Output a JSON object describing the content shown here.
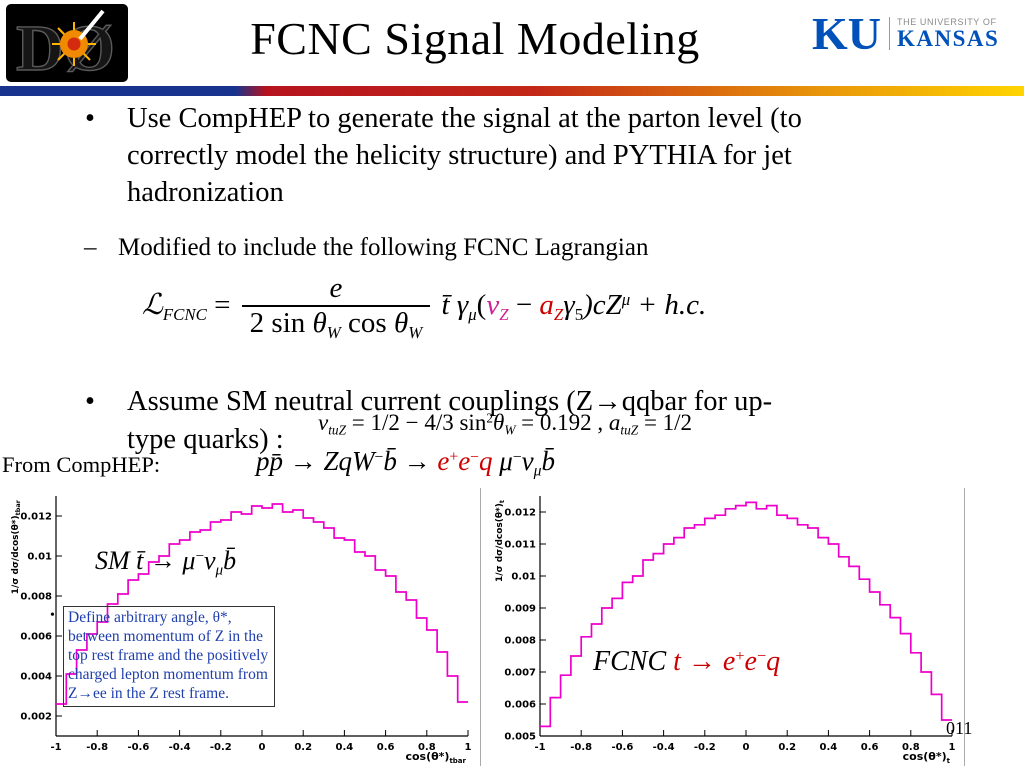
{
  "slide": {
    "title": "FCNC Signal Modeling",
    "page_number": "011"
  },
  "logos": {
    "d0_text": "DØ",
    "ku_monogram": "KU",
    "ku_line1": "THE UNIVERSITY OF",
    "ku_line2": "KANSAS"
  },
  "colors": {
    "accent_red": "#cc0000",
    "histogram_magenta": "#ee00cc",
    "ku_blue": "#0051ba",
    "note_blue": "#1f3fae"
  },
  "bullets": {
    "marker_dot": "•",
    "marker_dash": "–",
    "b1": "Use CompHEP to generate the signal at the parton level (to correctly model the helicity structure) and PYTHIA for jet hadronization",
    "b2": "Modified to include the following FCNC Lagrangian",
    "b3": "Assume SM neutral current couplings (Z→qqbar for up-type quarks) :"
  },
  "labels": {
    "from_comphep": "From CompHEP:"
  },
  "note": {
    "marker": "•",
    "text": "Define arbitrary angle, θ*, between momentum of Z in the top rest frame and the positively charged lepton momentum from Z→ee in the Z rest frame."
  },
  "formulas": {
    "lagrangian": [
      {
        "t": "ℒ",
        "c": "it"
      },
      {
        "t": "FCNC",
        "c": "sub it"
      },
      {
        "t": " = ",
        "c": ""
      },
      {
        "frac": {
          "num": [
            {
              "t": "e",
              "c": "it"
            }
          ],
          "den": [
            {
              "t": "2 sin ",
              "c": ""
            },
            {
              "t": "θ",
              "c": "it"
            },
            {
              "t": "W",
              "c": "sub it"
            },
            {
              "t": " cos ",
              "c": ""
            },
            {
              "t": "θ",
              "c": "it"
            },
            {
              "t": "W",
              "c": "sub it"
            }
          ]
        }
      },
      {
        "t": "  t̄ γ",
        "c": "it"
      },
      {
        "t": "μ",
        "c": "sub it"
      },
      {
        "t": "(",
        "c": ""
      },
      {
        "t": "v",
        "c": "it mag"
      },
      {
        "t": "Z",
        "c": "sub it mag"
      },
      {
        "t": " − ",
        "c": ""
      },
      {
        "t": "a",
        "c": "it red"
      },
      {
        "t": "Z",
        "c": "sub it red"
      },
      {
        "t": "γ",
        "c": "it"
      },
      {
        "t": "5",
        "c": "sub"
      },
      {
        "t": ")cZ",
        "c": "it"
      },
      {
        "t": "μ",
        "c": "sup it"
      },
      {
        "t": " + h.c.",
        "c": "it"
      }
    ],
    "couplings": [
      {
        "t": "v",
        "c": "it"
      },
      {
        "t": "tuZ",
        "c": "sub it"
      },
      {
        "t": " = 1/2 − 4/3 sin",
        "c": ""
      },
      {
        "t": "2",
        "c": "sup"
      },
      {
        "t": "θ",
        "c": "it"
      },
      {
        "t": "W",
        "c": "sub it"
      },
      {
        "t": " = 0.192 ,  ",
        "c": ""
      },
      {
        "t": "a",
        "c": "it"
      },
      {
        "t": "tuZ",
        "c": "sub it"
      },
      {
        "t": " = 1/2",
        "c": ""
      }
    ],
    "process": [
      {
        "t": "pp̄",
        "c": "it"
      },
      {
        "t": " → ",
        "c": ""
      },
      {
        "t": "ZqW",
        "c": "it"
      },
      {
        "t": "−",
        "c": "sup"
      },
      {
        "t": "b̄",
        "c": "it"
      },
      {
        "t": " → ",
        "c": ""
      },
      {
        "t": "e",
        "c": "it red"
      },
      {
        "t": "+",
        "c": "sup red"
      },
      {
        "t": "e",
        "c": "it red"
      },
      {
        "t": "−",
        "c": "sup red"
      },
      {
        "t": "q ",
        "c": "it red"
      },
      {
        "t": "μ",
        "c": "it"
      },
      {
        "t": "−",
        "c": "sup"
      },
      {
        "t": "ν",
        "c": "it"
      },
      {
        "t": "μ",
        "c": "sub it"
      },
      {
        "t": "b̄",
        "c": "it"
      }
    ],
    "sm_label": [
      {
        "t": "SM  t̄ ",
        "c": "it"
      },
      {
        "t": "→ ",
        "c": ""
      },
      {
        "t": "μ",
        "c": "it"
      },
      {
        "t": "−",
        "c": "sup"
      },
      {
        "t": "ν",
        "c": "it"
      },
      {
        "t": "μ",
        "c": "sub it"
      },
      {
        "t": "b̄",
        "c": "it"
      }
    ],
    "fcnc_label": [
      {
        "t": "FCNC ",
        "c": "it"
      },
      {
        "t": "t",
        "c": "it red"
      },
      {
        "t": " → ",
        "c": "red"
      },
      {
        "t": "e",
        "c": "it red"
      },
      {
        "t": "+",
        "c": "sup red"
      },
      {
        "t": "e",
        "c": "it red"
      },
      {
        "t": "−",
        "c": "sup red"
      },
      {
        "t": "q",
        "c": "it red"
      }
    ]
  },
  "chart_data": [
    {
      "name": "sm_costheta_tbar",
      "type": "histogram",
      "xlabel": "cos(θ*)",
      "xsub": "tbar",
      "ylabel": "1/σ dσ/dcos(θ*)",
      "ysub": "tbar",
      "xlim": [
        -1,
        1
      ],
      "ylim": [
        0.001,
        0.013
      ],
      "xticks": [
        -1,
        -0.8,
        -0.6,
        -0.4,
        -0.2,
        0,
        0.2,
        0.4,
        0.6,
        0.8,
        1
      ],
      "yticks": [
        0.002,
        0.004,
        0.006,
        0.008,
        0.01,
        0.012
      ],
      "color": "#ee00cc",
      "legend": "none",
      "grid": false,
      "values": [
        0.0026,
        0.0041,
        0.0053,
        0.0061,
        0.0067,
        0.0076,
        0.0081,
        0.0088,
        0.0091,
        0.0097,
        0.01,
        0.0106,
        0.0108,
        0.0112,
        0.0113,
        0.0117,
        0.0118,
        0.0122,
        0.0121,
        0.0125,
        0.0124,
        0.0126,
        0.0122,
        0.0123,
        0.0119,
        0.0117,
        0.0114,
        0.0109,
        0.0108,
        0.0102,
        0.01,
        0.0093,
        0.009,
        0.0082,
        0.0078,
        0.0069,
        0.0063,
        0.0052,
        0.004,
        0.0027
      ]
    },
    {
      "name": "fcnc_costheta_t",
      "type": "histogram",
      "xlabel": "cos(θ*)",
      "xsub": "t",
      "ylabel": "1/σ dσ/dcos(θ*)",
      "ysub": "t",
      "xlim": [
        -1,
        1
      ],
      "ylim": [
        0.005,
        0.0125
      ],
      "xticks": [
        -1,
        -0.8,
        -0.6,
        -0.4,
        -0.2,
        0,
        0.2,
        0.4,
        0.6,
        0.8,
        1
      ],
      "yticks": [
        0.005,
        0.006,
        0.007,
        0.008,
        0.009,
        0.01,
        0.011,
        0.012
      ],
      "color": "#ee00cc",
      "legend": "none",
      "grid": false,
      "values": [
        0.0053,
        0.0062,
        0.0069,
        0.0075,
        0.0081,
        0.0085,
        0.009,
        0.0093,
        0.0098,
        0.01,
        0.0105,
        0.0107,
        0.011,
        0.0112,
        0.0115,
        0.0116,
        0.0118,
        0.0119,
        0.0121,
        0.0122,
        0.0123,
        0.0121,
        0.0122,
        0.0119,
        0.0118,
        0.0116,
        0.0115,
        0.0112,
        0.011,
        0.0106,
        0.0103,
        0.0099,
        0.0095,
        0.0091,
        0.0087,
        0.0082,
        0.0076,
        0.007,
        0.0063,
        0.0055
      ]
    }
  ]
}
